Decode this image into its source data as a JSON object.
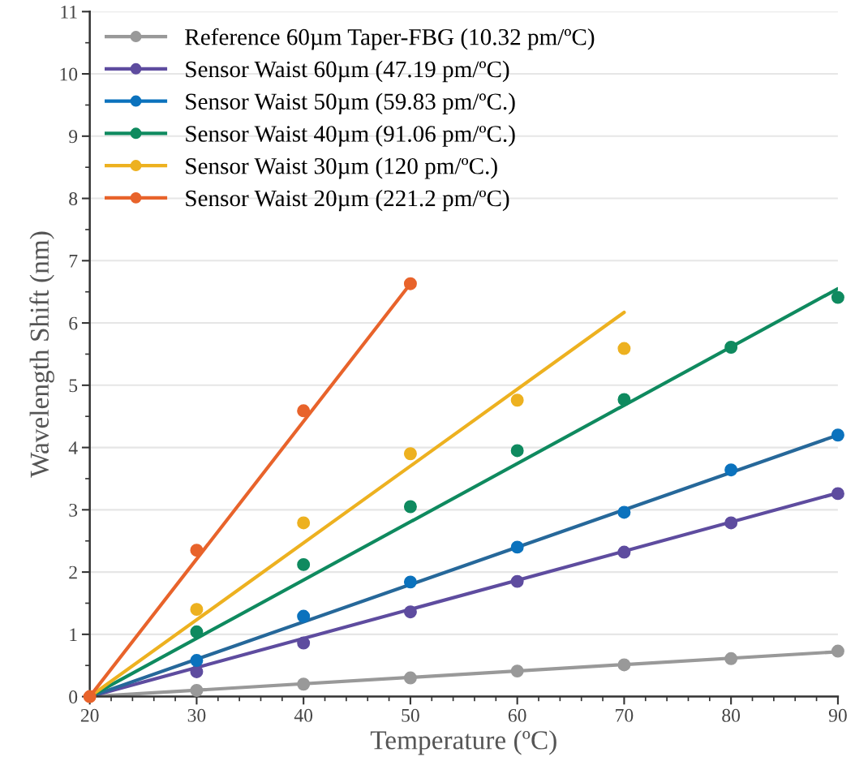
{
  "chart_data": {
    "type": "scatter",
    "xlabel": "Temperature (ºC)",
    "ylabel": "Wavelength Shift (nm)",
    "xlim": [
      20,
      90
    ],
    "xticks": [
      20,
      30,
      40,
      50,
      60,
      70,
      80,
      90
    ],
    "ylim": [
      0,
      11
    ],
    "yticks": [
      0,
      1,
      2,
      3,
      4,
      5,
      6,
      7,
      8,
      9,
      10,
      11
    ],
    "grid": "y",
    "legend": "top left",
    "marker": "circle",
    "x": [
      20,
      30,
      40,
      50,
      60,
      70,
      80,
      90
    ],
    "series": [
      {
        "name": "Reference 60µm Taper-FBG (10.32 pm/ºC)",
        "color": "#999999",
        "values": [
          null,
          0.1,
          0.2,
          0.3,
          0.41,
          0.51,
          0.61,
          0.73
        ]
      },
      {
        "name": "Sensor Waist 60µm (47.19 pm/ºC)",
        "color": "#5e4c9f",
        "values": [
          null,
          0.4,
          0.86,
          1.36,
          1.85,
          2.32,
          2.79,
          3.26
        ]
      },
      {
        "name": "Sensor Waist 50µm (59.83 pm/ºC.)",
        "color": "#0b72bd",
        "values": [
          null,
          0.58,
          1.29,
          1.84,
          2.4,
          2.96,
          3.64,
          4.2
        ]
      },
      {
        "name": "Sensor Waist 40µm (91.06 pm/ºC.)",
        "color": "#0f8a5f",
        "values": [
          null,
          1.04,
          2.12,
          3.05,
          3.95,
          4.77,
          5.61,
          6.41
        ]
      },
      {
        "name": "Sensor Waist 30µm (120 pm/ºC.)",
        "color": "#edb120",
        "values": [
          null,
          1.4,
          2.79,
          3.9,
          4.76,
          5.59,
          null,
          null
        ]
      },
      {
        "name": "Sensor Waist 20µm (221.2 pm/ºC)",
        "color": "#e8632b",
        "values": [
          0,
          2.35,
          4.59,
          6.63,
          null,
          null,
          null,
          null
        ]
      },
      {
        "type": "line",
        "marker": "none",
        "color": "#999999",
        "x": [
          20,
          90
        ],
        "values": [
          0,
          0.72
        ]
      },
      {
        "type": "line",
        "marker": "none",
        "color": "#5e4c9f",
        "x": [
          20,
          90
        ],
        "values": [
          0,
          3.27
        ]
      },
      {
        "type": "line",
        "marker": "none",
        "color": "#26689a",
        "x": [
          20,
          90
        ],
        "values": [
          0,
          4.2
        ]
      },
      {
        "type": "line",
        "marker": "none",
        "color": "#0f8a5f",
        "x": [
          20,
          90
        ],
        "values": [
          0,
          6.55
        ]
      },
      {
        "type": "line",
        "marker": "none",
        "color": "#edb120",
        "x": [
          20,
          70
        ],
        "values": [
          0,
          6.17
        ]
      },
      {
        "type": "line",
        "marker": "none",
        "color": "#e8632b",
        "x": [
          20,
          50
        ],
        "values": [
          0,
          6.63
        ]
      }
    ]
  }
}
